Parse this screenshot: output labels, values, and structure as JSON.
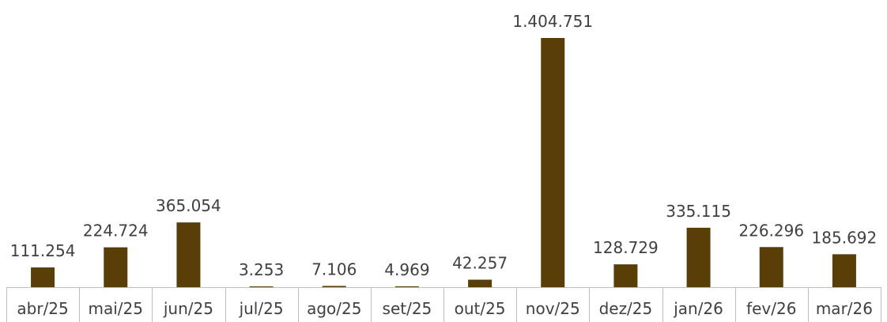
{
  "chart_data": {
    "type": "bar",
    "categories": [
      "abr/25",
      "mai/25",
      "jun/25",
      "jul/25",
      "ago/25",
      "set/25",
      "out/25",
      "nov/25",
      "dez/25",
      "jan/26",
      "fev/26",
      "mar/26"
    ],
    "values": [
      111254,
      224724,
      365054,
      3253,
      7106,
      4969,
      42257,
      1404751,
      128729,
      335115,
      226296,
      185692
    ],
    "data_labels": [
      "111.254",
      "224.724",
      "365.054",
      "3.253",
      "7.106",
      "4.969",
      "42.257",
      "1.404.751",
      "128.729",
      "335.115",
      "226.296",
      "185.692"
    ],
    "title": "",
    "xlabel": "",
    "ylabel": "",
    "ylim": [
      0,
      1404751
    ],
    "grid": false,
    "legend": "none",
    "colors": {
      "bar": "#5a3e08",
      "axis": "#bfbfbf",
      "text": "#404040"
    }
  }
}
